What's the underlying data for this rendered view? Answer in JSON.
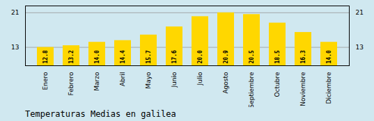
{
  "chart_data": {
    "type": "bar",
    "title": "Temperaturas Medias en galilea",
    "categories": [
      "Enero",
      "Febrero",
      "Marzo",
      "Abril",
      "Mayo",
      "Junio",
      "Julio",
      "Agosto",
      "Septiembre",
      "Octubre",
      "Noviembre",
      "Diciembre"
    ],
    "values": [
      12.8,
      13.2,
      14.0,
      14.4,
      15.7,
      17.6,
      20.0,
      20.9,
      20.5,
      18.5,
      16.3,
      14.0
    ],
    "value_labels": [
      "12.8",
      "13.2",
      "14.0",
      "14.4",
      "15.7",
      "17.6",
      "20.0",
      "20.9",
      "20.5",
      "18.5",
      "16.3",
      "14.0"
    ],
    "color": "#FFD700",
    "ylim": [
      8.5,
      22.5
    ],
    "yticks": [
      12.8,
      20.9
    ],
    "grid": true,
    "data_labels": true
  }
}
